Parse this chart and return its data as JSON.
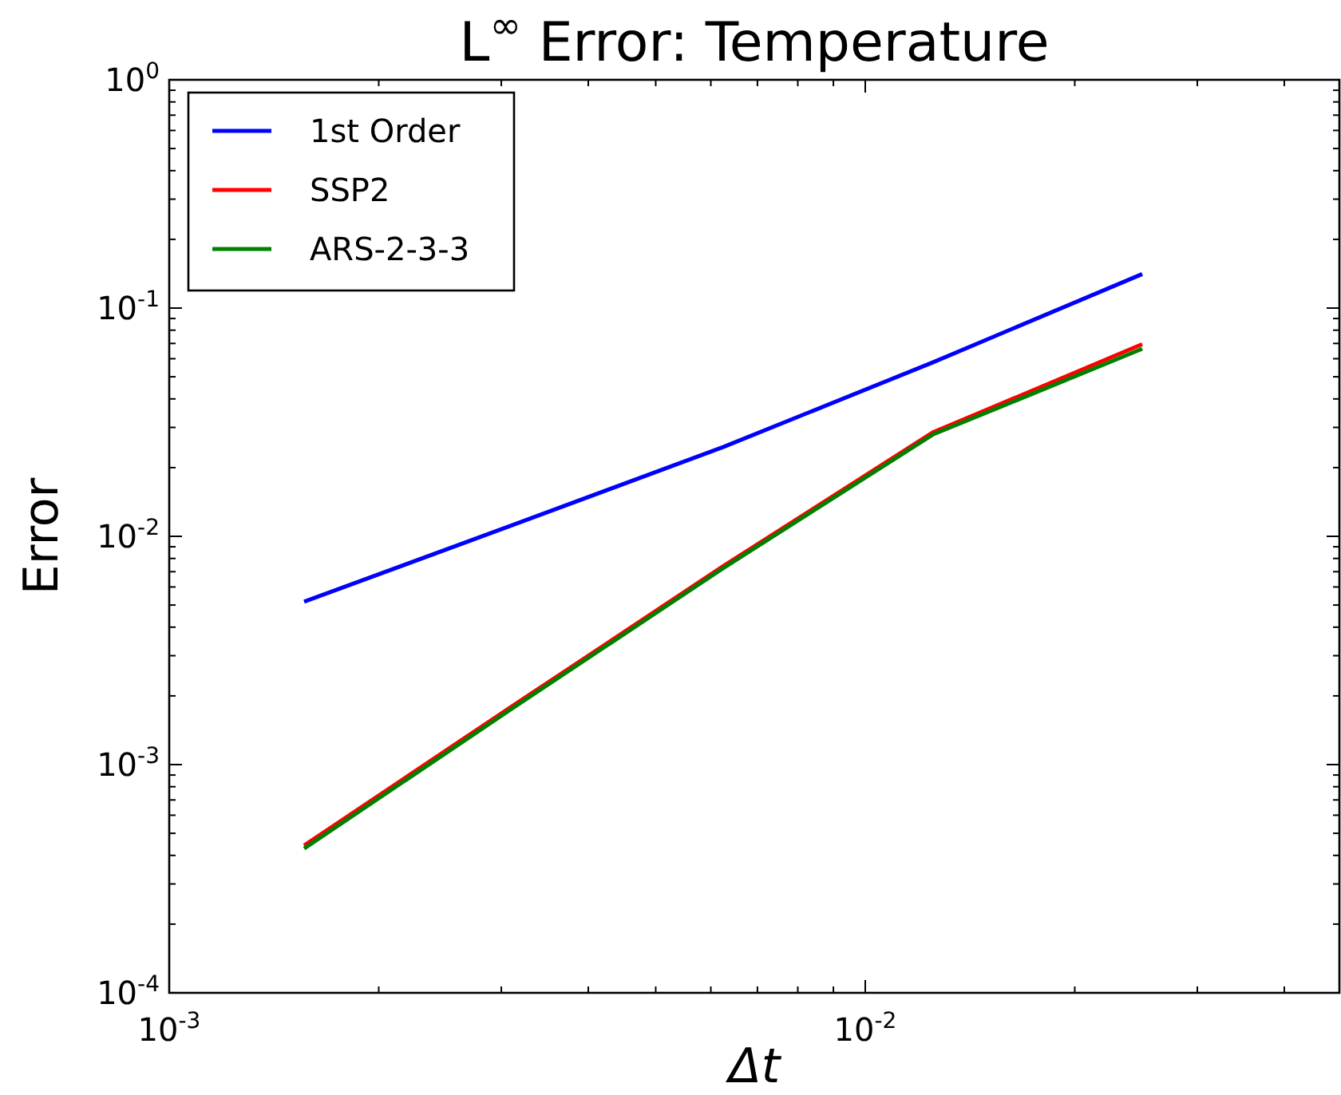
{
  "chart_data": {
    "type": "line",
    "title": "L$^{∞}$  Error: Temperature",
    "xlabel": "Δt",
    "ylabel": "Error",
    "log": "xy",
    "legend": "top left",
    "line_style": "solid",
    "marker": "none",
    "grid": false,
    "xlim": [
      0.001,
      0.048
    ],
    "ylim": [
      0.0001,
      1
    ],
    "xticks": [
      {
        "value": 0.001,
        "label": "10$^{-3}$"
      },
      {
        "value": 0.002,
        "label": null
      },
      {
        "value": 0.003,
        "label": null
      },
      {
        "value": 0.004,
        "label": null
      },
      {
        "value": 0.005,
        "label": null
      },
      {
        "value": 0.006,
        "label": null
      },
      {
        "value": 0.007,
        "label": null
      },
      {
        "value": 0.008,
        "label": null
      },
      {
        "value": 0.009,
        "label": null
      },
      {
        "value": 0.01,
        "label": "10$^{-2}$"
      },
      {
        "value": 0.02,
        "label": null
      },
      {
        "value": 0.03,
        "label": null
      },
      {
        "value": 0.04,
        "label": null
      }
    ],
    "yticks": [
      {
        "value": 0.0001,
        "label": "10$^{-4}$"
      },
      {
        "value": 0.0002,
        "label": null
      },
      {
        "value": 0.0003,
        "label": null
      },
      {
        "value": 0.0004,
        "label": null
      },
      {
        "value": 0.0005,
        "label": null
      },
      {
        "value": 0.0006,
        "label": null
      },
      {
        "value": 0.0007,
        "label": null
      },
      {
        "value": 0.0008,
        "label": null
      },
      {
        "value": 0.0009,
        "label": null
      },
      {
        "value": 0.001,
        "label": "10$^{-3}$"
      },
      {
        "value": 0.002,
        "label": null
      },
      {
        "value": 0.003,
        "label": null
      },
      {
        "value": 0.004,
        "label": null
      },
      {
        "value": 0.005,
        "label": null
      },
      {
        "value": 0.006,
        "label": null
      },
      {
        "value": 0.007,
        "label": null
      },
      {
        "value": 0.008,
        "label": null
      },
      {
        "value": 0.009,
        "label": null
      },
      {
        "value": 0.01,
        "label": "10$^{-2}$"
      },
      {
        "value": 0.02,
        "label": null
      },
      {
        "value": 0.03,
        "label": null
      },
      {
        "value": 0.04,
        "label": null
      },
      {
        "value": 0.05,
        "label": null
      },
      {
        "value": 0.06,
        "label": null
      },
      {
        "value": 0.07,
        "label": null
      },
      {
        "value": 0.08,
        "label": null
      },
      {
        "value": 0.09,
        "label": null
      },
      {
        "value": 0.1,
        "label": "10$^{-1}$"
      },
      {
        "value": 0.2,
        "label": null
      },
      {
        "value": 0.3,
        "label": null
      },
      {
        "value": 0.4,
        "label": null
      },
      {
        "value": 0.5,
        "label": null
      },
      {
        "value": 0.6,
        "label": null
      },
      {
        "value": 0.7,
        "label": null
      },
      {
        "value": 0.8,
        "label": null
      },
      {
        "value": 0.9,
        "label": null
      },
      {
        "value": 1,
        "label": "10$^{0}$"
      }
    ],
    "x": [
      0.0015625,
      0.003125,
      0.00625,
      0.0125,
      0.025
    ],
    "series": [
      {
        "name": "1st Order",
        "color": "#0000ff",
        "values": [
          0.00517,
          0.01125,
          0.0246,
          0.0578,
          0.141
        ]
      },
      {
        "name": "SSP2",
        "color": "#ff0000",
        "values": [
          0.000442,
          0.00182,
          0.0074,
          0.0285,
          0.0695
        ]
      },
      {
        "name": "ARS-2-3-3",
        "color": "#008000",
        "values": [
          0.000429,
          0.00178,
          0.00725,
          0.0279,
          0.0663
        ]
      }
    ]
  }
}
